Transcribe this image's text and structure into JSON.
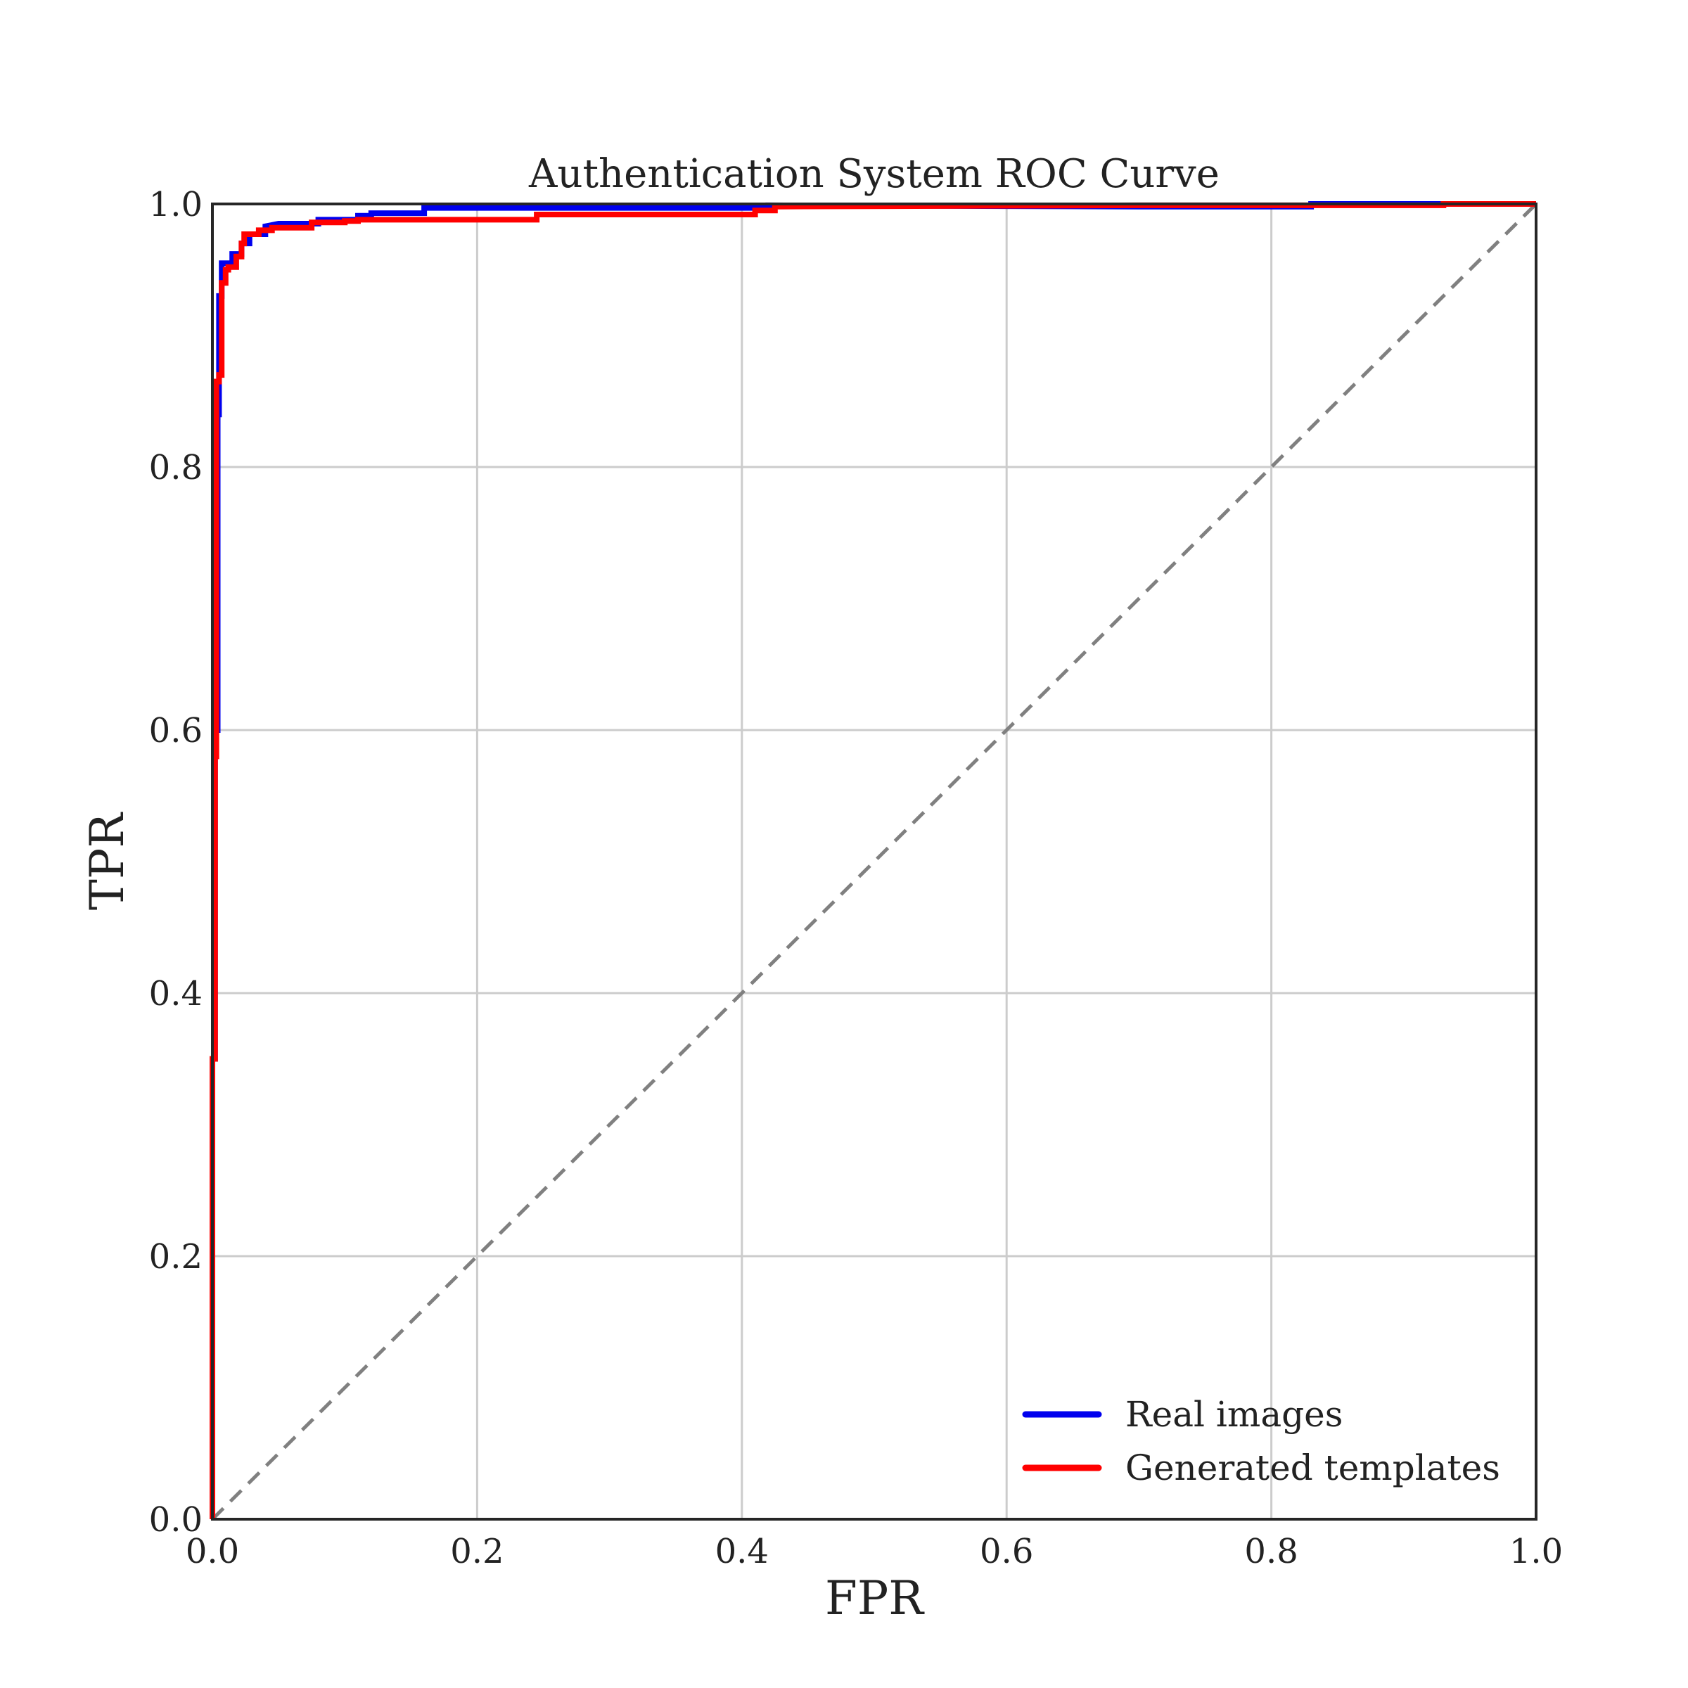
{
  "chart_data": {
    "type": "line",
    "title": "Authentication System ROC Curve",
    "xlabel": "FPR",
    "ylabel": "TPR",
    "xlim": [
      0.0,
      1.0
    ],
    "ylim": [
      0.0,
      1.0
    ],
    "x_ticks": [
      "0.0",
      "0.2",
      "0.4",
      "0.6",
      "0.8",
      "1.0"
    ],
    "y_ticks": [
      "0.0",
      "0.2",
      "0.4",
      "0.6",
      "0.8",
      "1.0"
    ],
    "grid": true,
    "legend_position": "bottom-right",
    "diagonal": {
      "x": [
        0,
        1
      ],
      "y": [
        0,
        1
      ],
      "color": "#808080",
      "style": "dashed"
    },
    "series": [
      {
        "name": "Real images",
        "color": "#0000ee",
        "x": [
          0.0,
          0.0,
          0.002,
          0.002,
          0.004,
          0.004,
          0.005,
          0.005,
          0.007,
          0.007,
          0.01,
          0.01,
          0.015,
          0.015,
          0.022,
          0.022,
          0.028,
          0.028,
          0.04,
          0.04,
          0.05,
          0.08,
          0.08,
          0.11,
          0.11,
          0.12,
          0.12,
          0.16,
          0.16,
          0.42,
          0.42,
          0.7,
          0.83,
          0.83,
          1.0
        ],
        "y": [
          0.0,
          0.35,
          0.35,
          0.6,
          0.6,
          0.84,
          0.84,
          0.93,
          0.93,
          0.955,
          0.955,
          0.955,
          0.955,
          0.962,
          0.962,
          0.97,
          0.97,
          0.977,
          0.977,
          0.983,
          0.985,
          0.985,
          0.988,
          0.988,
          0.991,
          0.991,
          0.993,
          0.993,
          0.997,
          0.997,
          0.999,
          0.998,
          0.998,
          1.0,
          1.0
        ]
      },
      {
        "name": "Generated templates",
        "color": "#ff0000",
        "x": [
          0.0,
          0.0,
          0.002,
          0.002,
          0.003,
          0.003,
          0.005,
          0.005,
          0.007,
          0.007,
          0.01,
          0.01,
          0.012,
          0.012,
          0.018,
          0.018,
          0.022,
          0.022,
          0.024,
          0.024,
          0.035,
          0.035,
          0.045,
          0.045,
          0.075,
          0.075,
          0.1,
          0.1,
          0.11,
          0.11,
          0.245,
          0.245,
          0.41,
          0.41,
          0.425,
          0.425,
          0.7,
          0.93,
          0.93,
          1.0
        ],
        "y": [
          0.0,
          0.35,
          0.35,
          0.58,
          0.58,
          0.865,
          0.865,
          0.87,
          0.87,
          0.94,
          0.94,
          0.95,
          0.95,
          0.952,
          0.952,
          0.96,
          0.96,
          0.97,
          0.97,
          0.977,
          0.977,
          0.98,
          0.98,
          0.982,
          0.982,
          0.986,
          0.986,
          0.987,
          0.987,
          0.988,
          0.988,
          0.992,
          0.992,
          0.995,
          0.995,
          0.998,
          0.999,
          0.999,
          1.0,
          1.0
        ]
      }
    ]
  }
}
